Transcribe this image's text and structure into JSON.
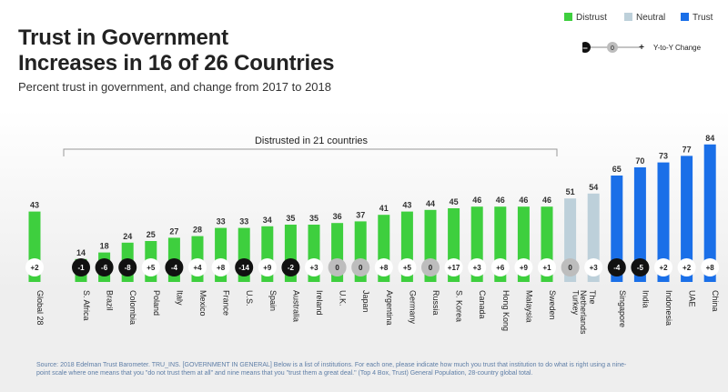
{
  "header": {
    "title_line1": "Trust in Government",
    "title_line2": "Increases in 16 of 26 Countries",
    "subtitle": "Percent trust in government, and change from 2017 to 2018"
  },
  "legend": {
    "distrust": "Distrust",
    "neutral": "Neutral",
    "trust": "Trust",
    "yoy_minus": "–",
    "yoy_zero": "0",
    "yoy_plus": "+",
    "yoy_label": "Y-to-Y Change"
  },
  "colors": {
    "distrust": "#3ecf3e",
    "neutral": "#bdd0da",
    "trust": "#1a6fe8",
    "negative_badge": "#111111",
    "zero_badge": "#bdbdbd",
    "positive_badge": "#ffffff"
  },
  "chart_data": {
    "type": "bar",
    "title": "Trust in Government Increases in 16 of 26 Countries",
    "annotation": "Distrusted in 21 countries",
    "ylim": [
      0,
      100
    ],
    "categories": [
      "Global 28",
      "S. Africa",
      "Brazil",
      "Colombia",
      "Poland",
      "Italy",
      "Mexico",
      "France",
      "U.S.",
      "Spain",
      "Australia",
      "Ireland",
      "U.K.",
      "Japan",
      "Argentina",
      "Germany",
      "Russia",
      "S. Korea",
      "Canada",
      "Hong Kong",
      "Malaysia",
      "Sweden",
      "Turkey",
      "The Netherlands",
      "Singapore",
      "India",
      "Indonesia",
      "UAE",
      "China"
    ],
    "values": [
      43,
      14,
      18,
      24,
      25,
      27,
      28,
      33,
      33,
      34,
      35,
      35,
      36,
      37,
      41,
      43,
      44,
      45,
      46,
      46,
      46,
      46,
      51,
      54,
      65,
      70,
      73,
      77,
      84
    ],
    "value_labels": [
      "43",
      "14",
      "18",
      "24",
      "25",
      "27",
      "28",
      "33",
      "33",
      "34",
      "35",
      "35",
      "36",
      "37",
      "41",
      "43",
      "44",
      "45",
      "46",
      "46",
      "46",
      "46",
      "51",
      "54",
      "65",
      "70",
      "73",
      "77",
      "84"
    ],
    "changes": [
      "+2",
      "-1",
      "-6",
      "-8",
      "+5",
      "-4",
      "+4",
      "+8",
      "-14",
      "+9",
      "-2",
      "+3",
      "0",
      "0",
      "+8",
      "+5",
      "0",
      "+17",
      "+3",
      "+6",
      "+9",
      "+1",
      "0",
      "+3",
      "-4",
      "-5",
      "+2",
      "+2",
      "+8"
    ],
    "status": [
      "distrust",
      "distrust",
      "distrust",
      "distrust",
      "distrust",
      "distrust",
      "distrust",
      "distrust",
      "distrust",
      "distrust",
      "distrust",
      "distrust",
      "distrust",
      "distrust",
      "distrust",
      "distrust",
      "distrust",
      "distrust",
      "distrust",
      "distrust",
      "distrust",
      "distrust",
      "neutral",
      "neutral",
      "trust",
      "trust",
      "trust",
      "trust",
      "trust"
    ]
  },
  "footer": {
    "source": "Source: 2018 Edelman Trust Barometer. TRU_INS. [GOVERNMENT IN GENERAL] Below is a list of institutions. For each one, please indicate how much you trust that institution to do what is right using a nine-point scale where one means that you \"do not trust them at all\" and nine means that you \"trust them a great deal.\" (Top 4 Box, Trust) General Population, 28-country global total."
  }
}
